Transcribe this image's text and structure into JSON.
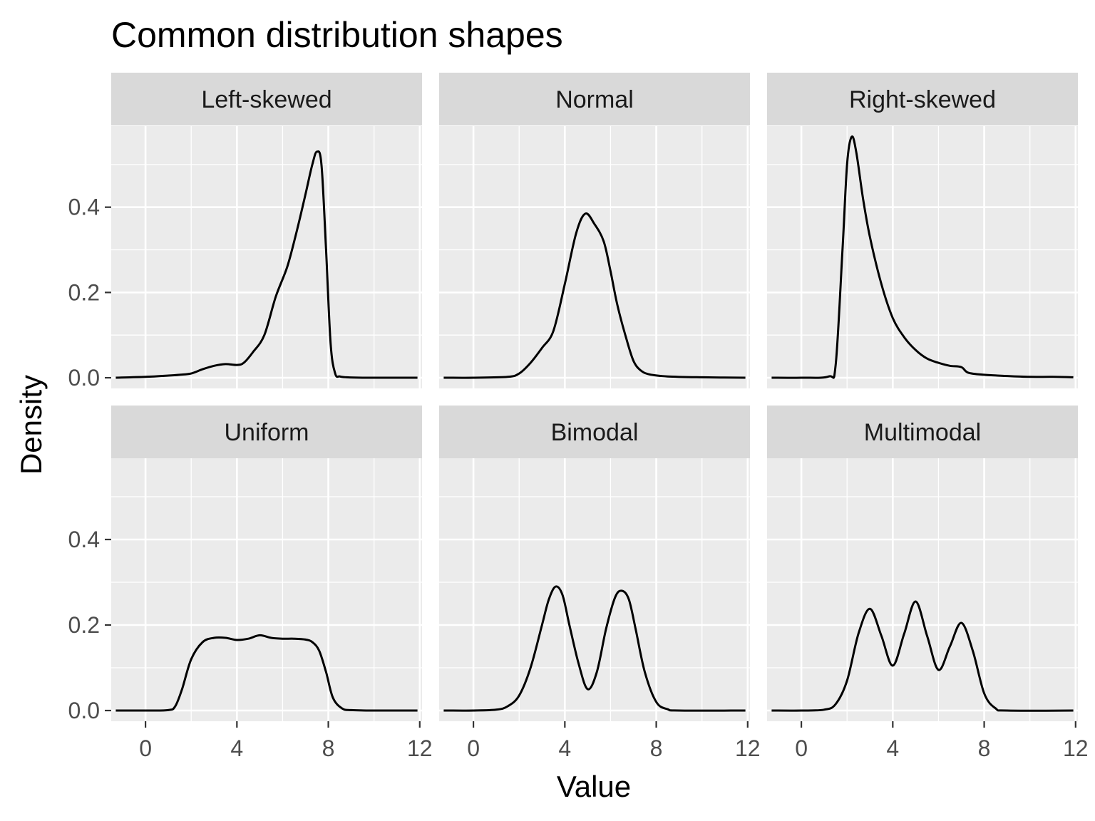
{
  "chart_data": {
    "type": "line",
    "title": "Common distribution shapes",
    "xlabel": "Value",
    "ylabel": "Density",
    "xlim": [
      -1.5,
      12.1
    ],
    "ylim": [
      -0.025,
      0.59
    ],
    "x_ticks": [
      0,
      4,
      8,
      12
    ],
    "x_tick_labels": [
      "0",
      "4",
      "8",
      "12"
    ],
    "y_ticks": [
      0.0,
      0.2,
      0.4
    ],
    "y_tick_labels": [
      "0.0",
      "0.2",
      "0.4"
    ],
    "grid": true,
    "facets": [
      {
        "name": "Left-skewed",
        "x": [
          -1.3,
          0,
          1,
          1.5,
          2,
          2.5,
          3,
          3.5,
          4,
          4.3,
          4.7,
          5.2,
          5.7,
          6.2,
          6.6,
          7,
          7.3,
          7.5,
          7.7,
          7.9,
          8.1,
          8.3,
          8.5,
          8.8,
          9.5,
          11,
          11.9
        ],
        "y": [
          0.0,
          0.002,
          0.005,
          0.007,
          0.01,
          0.02,
          0.028,
          0.032,
          0.03,
          0.035,
          0.06,
          0.1,
          0.19,
          0.26,
          0.34,
          0.43,
          0.5,
          0.53,
          0.5,
          0.3,
          0.08,
          0.01,
          0.003,
          0.001,
          0.0,
          0.0,
          0.0
        ]
      },
      {
        "name": "Normal",
        "x": [
          -1.3,
          0,
          1.5,
          2,
          2.5,
          3,
          3.5,
          4,
          4.5,
          4.9,
          5.3,
          5.7,
          6,
          6.3,
          6.7,
          7,
          7.3,
          7.7,
          8.5,
          10,
          11.9
        ],
        "y": [
          0.0,
          0.0,
          0.002,
          0.01,
          0.035,
          0.07,
          0.11,
          0.22,
          0.34,
          0.385,
          0.36,
          0.32,
          0.25,
          0.17,
          0.09,
          0.04,
          0.018,
          0.008,
          0.003,
          0.001,
          0.0
        ]
      },
      {
        "name": "Right-skewed",
        "x": [
          -1.3,
          0,
          1.2,
          1.5,
          1.8,
          2,
          2.2,
          2.4,
          2.7,
          3,
          3.5,
          4,
          4.5,
          5,
          5.5,
          6,
          6.5,
          7,
          7.3,
          8,
          9,
          10,
          11,
          11.9
        ],
        "y": [
          0.0,
          0.0,
          0.003,
          0.03,
          0.3,
          0.5,
          0.565,
          0.53,
          0.42,
          0.33,
          0.22,
          0.14,
          0.095,
          0.065,
          0.045,
          0.035,
          0.028,
          0.025,
          0.012,
          0.007,
          0.004,
          0.002,
          0.002,
          0.001
        ]
      },
      {
        "name": "Uniform",
        "x": [
          -1.3,
          0,
          1,
          1.3,
          1.6,
          2,
          2.5,
          3,
          3.5,
          4,
          4.5,
          5,
          5.5,
          6,
          6.5,
          7,
          7.3,
          7.6,
          7.9,
          8.2,
          8.6,
          9,
          10,
          11.9
        ],
        "y": [
          0.0,
          0.0,
          0.001,
          0.01,
          0.05,
          0.12,
          0.16,
          0.17,
          0.17,
          0.165,
          0.168,
          0.176,
          0.17,
          0.168,
          0.168,
          0.166,
          0.16,
          0.14,
          0.09,
          0.03,
          0.005,
          0.001,
          0.0,
          0.0
        ]
      },
      {
        "name": "Bimodal",
        "x": [
          -1.3,
          0,
          1,
          1.5,
          2,
          2.5,
          3,
          3.3,
          3.6,
          3.9,
          4.2,
          4.6,
          5,
          5.4,
          5.8,
          6.2,
          6.5,
          6.8,
          7.1,
          7.5,
          8,
          8.5,
          9,
          11.9
        ],
        "y": [
          0.0,
          0.0,
          0.002,
          0.01,
          0.035,
          0.1,
          0.2,
          0.26,
          0.29,
          0.27,
          0.2,
          0.11,
          0.05,
          0.09,
          0.19,
          0.265,
          0.28,
          0.26,
          0.19,
          0.09,
          0.02,
          0.003,
          0.0,
          0.0
        ]
      },
      {
        "name": "Multimodal",
        "x": [
          -1.3,
          0,
          1,
          1.5,
          2,
          2.5,
          3,
          3.5,
          4,
          4.5,
          5,
          5.5,
          6,
          6.5,
          7,
          7.5,
          8,
          8.5,
          9,
          11.9
        ],
        "y": [
          0.0,
          0.0,
          0.002,
          0.015,
          0.07,
          0.18,
          0.238,
          0.175,
          0.105,
          0.18,
          0.255,
          0.175,
          0.095,
          0.15,
          0.205,
          0.14,
          0.04,
          0.005,
          0.0,
          0.0
        ]
      }
    ]
  }
}
